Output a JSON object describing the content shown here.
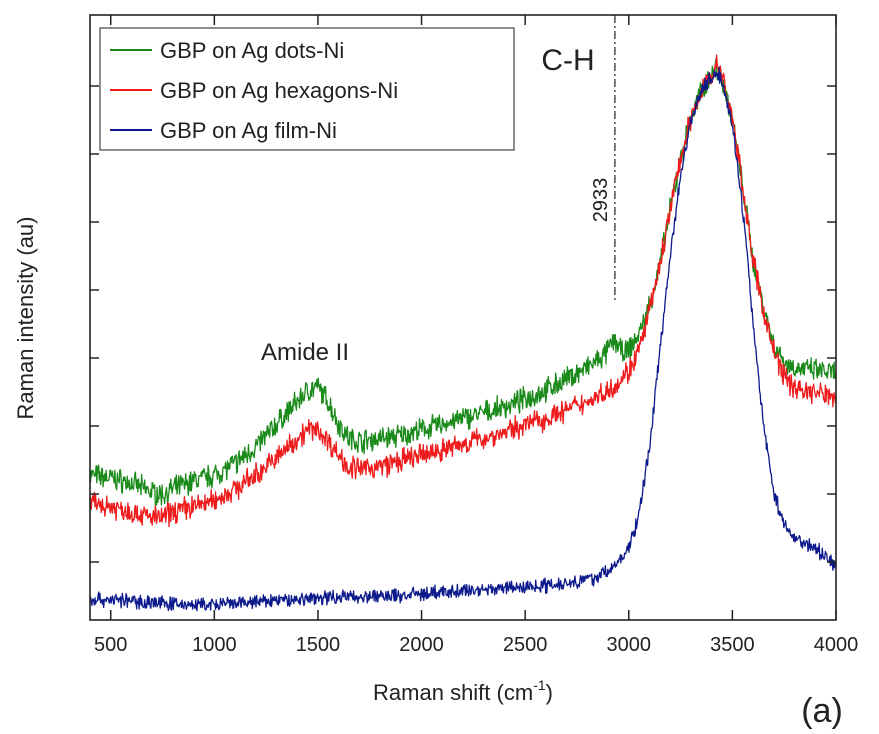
{
  "chart_data": {
    "type": "line",
    "title": "",
    "xlabel": "Raman shift (cm",
    "xlabel_sup": "-1",
    "xlabel_tail": ")",
    "ylabel": "Raman intensity (au)",
    "xlim": [
      400,
      4000
    ],
    "ylim": [
      0,
      100
    ],
    "y_tick_labels_shown": false,
    "x_ticks": [
      500,
      1000,
      1500,
      2000,
      2500,
      3000,
      3500,
      4000
    ],
    "x_tick_labels": [
      "500",
      "1000",
      "1500",
      "2000",
      "2500",
      "3000",
      "3500",
      "4000"
    ],
    "grid": false,
    "legend_position": "top-left",
    "panel_label": "(a)",
    "annotations": {
      "amide": {
        "text": "Amide II",
        "x": 1500,
        "y": 55
      },
      "ch": {
        "text": "C-H",
        "x": 2820,
        "y": 96
      },
      "line_label": {
        "text": "2933",
        "x": 2933
      }
    },
    "series": [
      {
        "name": "GBP on Ag dots-Ni",
        "color": "#1a8a1a",
        "x": [
          400,
          500,
          600,
          700,
          750,
          800,
          900,
          1000,
          1100,
          1200,
          1300,
          1400,
          1450,
          1500,
          1550,
          1600,
          1650,
          1700,
          1800,
          1900,
          2000,
          2100,
          2200,
          2300,
          2400,
          2500,
          2600,
          2700,
          2800,
          2880,
          2933,
          2970,
          3000,
          3050,
          3100,
          3150,
          3200,
          3250,
          3300,
          3350,
          3400,
          3420,
          3450,
          3500,
          3550,
          3600,
          3650,
          3700,
          3750,
          3800,
          3900,
          4000
        ],
        "y": [
          23,
          22.5,
          21.5,
          20,
          19.5,
          20.5,
          22,
          23,
          25,
          28,
          32,
          36,
          38,
          38.5,
          36,
          32,
          29.5,
          29,
          29.5,
          30,
          31,
          32,
          33,
          34,
          35,
          36.5,
          38,
          40,
          42,
          44,
          47,
          44.5,
          45,
          48,
          53,
          60,
          70,
          79,
          86,
          91,
          94,
          95,
          93.5,
          86,
          74,
          61,
          53,
          46,
          43,
          42,
          41.5,
          41
        ]
      },
      {
        "name": "GBP on Ag hexagons-Ni",
        "color": "#ee1c1c",
        "x": [
          400,
          500,
          600,
          700,
          750,
          800,
          900,
          1000,
          1100,
          1200,
          1300,
          1400,
          1450,
          1500,
          1550,
          1600,
          1650,
          1700,
          1800,
          1900,
          2000,
          2100,
          2200,
          2300,
          2400,
          2500,
          2600,
          2700,
          2800,
          2900,
          2950,
          3000,
          3050,
          3100,
          3150,
          3200,
          3250,
          3300,
          3350,
          3400,
          3430,
          3450,
          3500,
          3550,
          3600,
          3650,
          3700,
          3750,
          3800,
          3900,
          4000
        ],
        "y": [
          18,
          17.5,
          16.5,
          15.5,
          15.5,
          16.5,
          17.5,
          18.5,
          20.5,
          23,
          26,
          29.5,
          31,
          31,
          29,
          26.5,
          24.5,
          24,
          24.5,
          25.5,
          26.5,
          27.5,
          28.5,
          29.5,
          30.5,
          32,
          33,
          34.5,
          36,
          38,
          39.5,
          41.5,
          45,
          52,
          60,
          70,
          79,
          86,
          91,
          94,
          95.5,
          93.5,
          86,
          74,
          61,
          52,
          45,
          40.5,
          38.5,
          37.5,
          37
        ]
      },
      {
        "name": "GBP on Ag film-Ni",
        "color": "#0d1a8c",
        "x": [
          400,
          500,
          600,
          700,
          800,
          900,
          1000,
          1100,
          1200,
          1300,
          1400,
          1500,
          1600,
          1700,
          1800,
          1900,
          2000,
          2100,
          2200,
          2300,
          2400,
          2500,
          2600,
          2700,
          2800,
          2850,
          2900,
          2950,
          3000,
          3050,
          3100,
          3150,
          3200,
          3250,
          3300,
          3350,
          3400,
          3430,
          3450,
          3500,
          3550,
          3600,
          3650,
          3700,
          3750,
          3800,
          3850,
          3900,
          4000
        ],
        "y": [
          1,
          1,
          0.7,
          0.5,
          0.2,
          0,
          0,
          0.2,
          0.5,
          0.8,
          1,
          1.3,
          1.5,
          1.5,
          1.5,
          1.7,
          2,
          2.2,
          2.5,
          2.8,
          3,
          3.2,
          3.5,
          4,
          4.5,
          5,
          6,
          7.5,
          10,
          16,
          28,
          45,
          62,
          76,
          86,
          91,
          93.5,
          94,
          93,
          85,
          70,
          50,
          32,
          20,
          14,
          12,
          11,
          10,
          7
        ]
      }
    ]
  }
}
